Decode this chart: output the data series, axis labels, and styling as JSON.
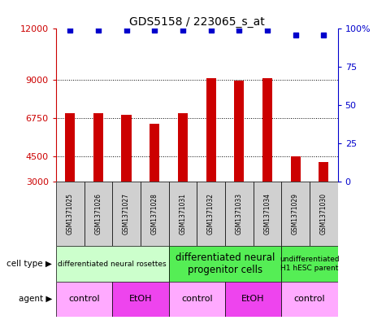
{
  "title": "GDS5158 / 223065_s_at",
  "samples": [
    "GSM1371025",
    "GSM1371026",
    "GSM1371027",
    "GSM1371028",
    "GSM1371031",
    "GSM1371032",
    "GSM1371033",
    "GSM1371034",
    "GSM1371029",
    "GSM1371030"
  ],
  "counts": [
    7050,
    7050,
    6950,
    6400,
    7050,
    9100,
    8950,
    9100,
    4500,
    4150
  ],
  "percentiles": [
    99,
    99,
    99,
    99,
    99,
    99,
    99,
    99,
    96,
    96
  ],
  "ymin": 3000,
  "ymax": 12000,
  "yticks": [
    3000,
    4500,
    6750,
    9000,
    12000
  ],
  "ytick_labels": [
    "3000",
    "4500",
    "6750",
    "9000",
    "12000"
  ],
  "y2ticks": [
    0,
    25,
    50,
    75,
    100
  ],
  "y2tick_labels": [
    "0",
    "25",
    "50",
    "75",
    "100%"
  ],
  "bar_color": "#cc0000",
  "dot_color": "#0000cc",
  "cell_type_groups": [
    {
      "label": "differentiated neural rosettes",
      "start": 0,
      "end": 4,
      "color": "#ccffcc",
      "fontsize": 6.5
    },
    {
      "label": "differentiated neural\nprogenitor cells",
      "start": 4,
      "end": 8,
      "color": "#55ee55",
      "fontsize": 8.5
    },
    {
      "label": "undifferentiated\nH1 hESC parent",
      "start": 8,
      "end": 10,
      "color": "#55ee55",
      "fontsize": 6.5
    }
  ],
  "agent_groups": [
    {
      "label": "control",
      "start": 0,
      "end": 2,
      "color": "#ffaaff"
    },
    {
      "label": "EtOH",
      "start": 2,
      "end": 4,
      "color": "#ee44ee"
    },
    {
      "label": "control",
      "start": 4,
      "end": 6,
      "color": "#ffaaff"
    },
    {
      "label": "EtOH",
      "start": 6,
      "end": 8,
      "color": "#ee44ee"
    },
    {
      "label": "control",
      "start": 8,
      "end": 10,
      "color": "#ffaaff"
    }
  ],
  "legend_count_color": "#cc0000",
  "legend_dot_color": "#0000cc"
}
